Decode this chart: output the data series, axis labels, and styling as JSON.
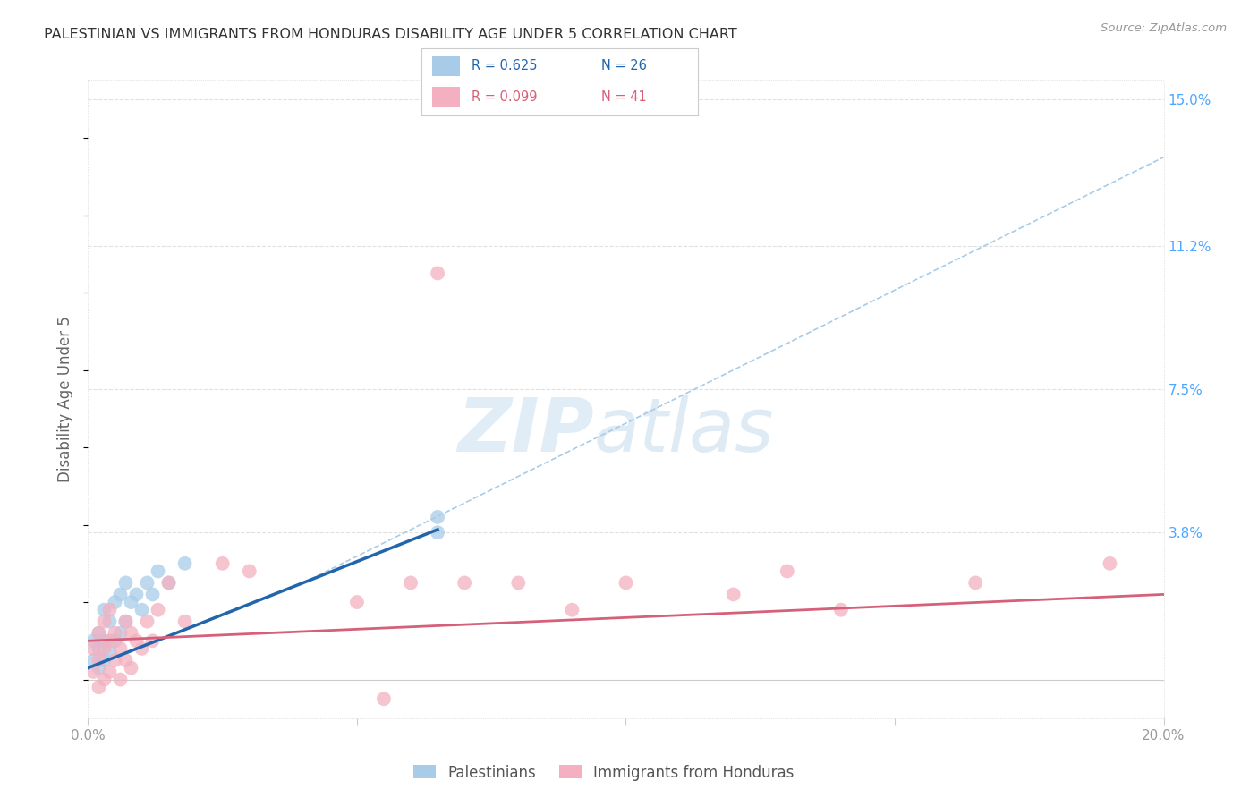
{
  "title": "PALESTINIAN VS IMMIGRANTS FROM HONDURAS DISABILITY AGE UNDER 5 CORRELATION CHART",
  "source": "Source: ZipAtlas.com",
  "ylabel": "Disability Age Under 5",
  "xlim": [
    0.0,
    0.2
  ],
  "ylim": [
    -0.01,
    0.155
  ],
  "plot_ylim": [
    -0.01,
    0.155
  ],
  "xticks": [
    0.0,
    0.05,
    0.1,
    0.15,
    0.2
  ],
  "xtick_labels": [
    "0.0%",
    "",
    "",
    "",
    "20.0%"
  ],
  "ytick_labels_right": [
    "15.0%",
    "11.2%",
    "7.5%",
    "3.8%"
  ],
  "yticks_right": [
    0.15,
    0.112,
    0.075,
    0.038
  ],
  "blue_color": "#a8cce8",
  "pink_color": "#f4b0c0",
  "blue_line_color": "#2166ac",
  "pink_line_color": "#d6607a",
  "dashed_line_color": "#a8cce8",
  "background_color": "#ffffff",
  "grid_color": "#e0e0e0",
  "title_color": "#333333",
  "axis_label_color": "#666666",
  "right_tick_color": "#4da6ff",
  "watermark_color": "#c8dff0",
  "palestinians_x": [
    0.001,
    0.001,
    0.002,
    0.002,
    0.002,
    0.003,
    0.003,
    0.003,
    0.004,
    0.004,
    0.005,
    0.005,
    0.006,
    0.006,
    0.007,
    0.007,
    0.008,
    0.009,
    0.01,
    0.011,
    0.012,
    0.013,
    0.015,
    0.018,
    0.065,
    0.065
  ],
  "palestinians_y": [
    0.005,
    0.01,
    0.003,
    0.008,
    0.012,
    0.005,
    0.01,
    0.018,
    0.007,
    0.015,
    0.01,
    0.02,
    0.012,
    0.022,
    0.015,
    0.025,
    0.02,
    0.022,
    0.018,
    0.025,
    0.022,
    0.028,
    0.025,
    0.03,
    0.042,
    0.038
  ],
  "honduras_x": [
    0.001,
    0.001,
    0.002,
    0.002,
    0.002,
    0.003,
    0.003,
    0.003,
    0.004,
    0.004,
    0.004,
    0.005,
    0.005,
    0.006,
    0.006,
    0.007,
    0.007,
    0.008,
    0.008,
    0.009,
    0.01,
    0.011,
    0.012,
    0.013,
    0.015,
    0.018,
    0.025,
    0.03,
    0.05,
    0.055,
    0.06,
    0.065,
    0.07,
    0.08,
    0.09,
    0.1,
    0.12,
    0.13,
    0.14,
    0.165,
    0.19
  ],
  "honduras_y": [
    0.002,
    0.008,
    -0.002,
    0.005,
    0.012,
    0.0,
    0.008,
    0.015,
    0.002,
    0.01,
    0.018,
    0.005,
    0.012,
    0.0,
    0.008,
    0.005,
    0.015,
    0.003,
    0.012,
    0.01,
    0.008,
    0.015,
    0.01,
    0.018,
    0.025,
    0.015,
    0.03,
    0.028,
    0.02,
    -0.005,
    0.025,
    0.105,
    0.025,
    0.025,
    0.018,
    0.025,
    0.022,
    0.028,
    0.018,
    0.025,
    0.03
  ],
  "blue_line_x": [
    0.0,
    0.065
  ],
  "blue_line_y_start": 0.003,
  "blue_line_slope": 0.55,
  "pink_line_x": [
    0.0,
    0.2
  ],
  "pink_line_y_start": 0.01,
  "pink_line_slope": 0.06,
  "dash_line_x": [
    0.04,
    0.2
  ],
  "dash_line_y": [
    0.025,
    0.135
  ]
}
